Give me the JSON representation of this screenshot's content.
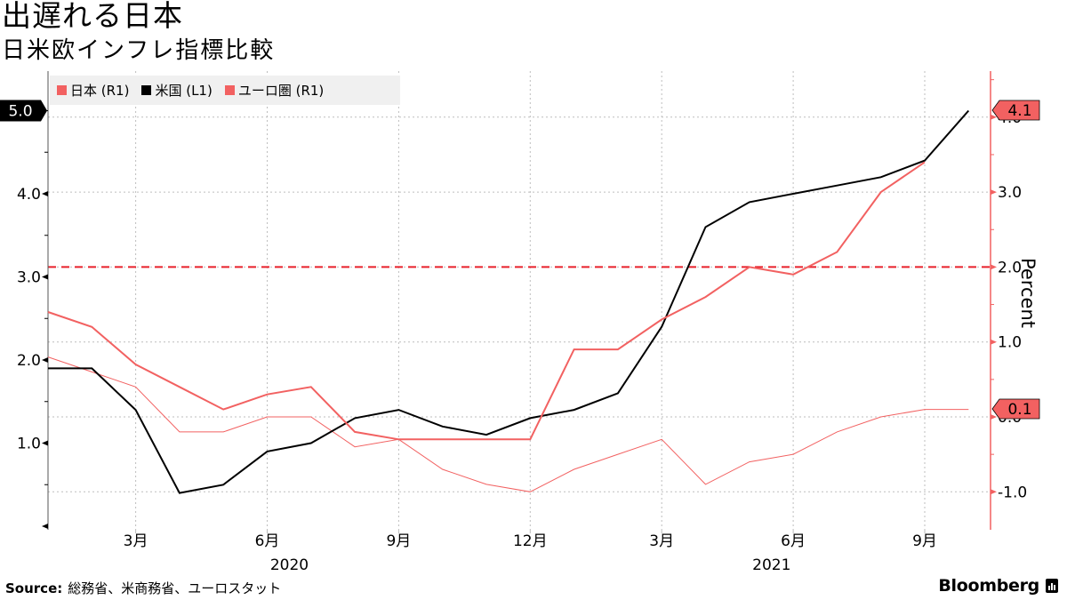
{
  "header": {
    "title": "出遅れる日本",
    "subtitle": "日米欧インフレ指標比較"
  },
  "legend": [
    {
      "label": "日本 (R1)",
      "color": "#f26161"
    },
    {
      "label": "米国 (L1)",
      "color": "#000000"
    },
    {
      "label": "ユーロ圏 (R1)",
      "color": "#f26161"
    }
  ],
  "footer": {
    "source_label": "Source:",
    "source_text": "総務省、米商務省、ユーロスタット",
    "brand": "Bloomberg"
  },
  "chart_data": {
    "type": "line",
    "title": "出遅れる日本",
    "subtitle": "日米欧インフレ指標比較",
    "xlabel": "",
    "ylabel_right": "Percent",
    "x": [
      "2020-01",
      "2020-02",
      "2020-03",
      "2020-04",
      "2020-05",
      "2020-06",
      "2020-07",
      "2020-08",
      "2020-09",
      "2020-10",
      "2020-11",
      "2020-12",
      "2021-01",
      "2021-02",
      "2021-03",
      "2021-04",
      "2021-05",
      "2021-06",
      "2021-07",
      "2021-08",
      "2021-09",
      "2021-10"
    ],
    "x_tick_labels": [
      "3月",
      "6月",
      "9月",
      "12月",
      "3月",
      "6月",
      "9月"
    ],
    "x_tick_months": [
      2,
      5,
      8,
      11,
      14,
      17,
      20
    ],
    "x_year_labels": [
      {
        "label": "2020",
        "month": 5
      },
      {
        "label": "2021",
        "month": 16
      }
    ],
    "left_axis": {
      "ticks": [
        "1.0",
        "2.0",
        "3.0",
        "4.0"
      ],
      "tick_values": [
        1,
        2,
        3,
        4
      ],
      "ylim": [
        0,
        5.0
      ],
      "last_value_label": "5.0"
    },
    "right_axis": {
      "ticks": [
        "-1.0",
        "0.0",
        "1.0",
        "2.0",
        "3.0",
        "4.0"
      ],
      "tick_values": [
        -1,
        0,
        1,
        2,
        3,
        4
      ],
      "ylim": [
        -1.5,
        5.5
      ],
      "labels_shown": [
        "-1.0",
        "1.0",
        "2.0",
        "3.0"
      ],
      "last_value_labels": [
        "4.1",
        "0.1"
      ]
    },
    "reference_line": {
      "axis": "right",
      "value": 2.0,
      "style": "dashed",
      "color": "#e8212b"
    },
    "grid": true,
    "legend_position": "top-left",
    "series": [
      {
        "name": "日本 (R1)",
        "axis": "right",
        "color": "#f26161",
        "width": 1,
        "values": [
          0.8,
          0.6,
          0.4,
          -0.2,
          -0.2,
          0.0,
          0.0,
          -0.4,
          -0.3,
          -0.7,
          -0.9,
          -1.0,
          -0.7,
          -0.5,
          -0.3,
          -0.9,
          -0.6,
          -0.5,
          -0.2,
          0.0,
          0.1,
          0.1
        ]
      },
      {
        "name": "米国 (L1)",
        "axis": "left",
        "color": "#000000",
        "width": 2,
        "values": [
          1.9,
          1.9,
          1.4,
          0.4,
          0.5,
          0.9,
          1.0,
          1.3,
          1.4,
          1.2,
          1.1,
          1.3,
          1.4,
          1.6,
          2.4,
          3.6,
          3.9,
          4.0,
          4.1,
          4.2,
          4.4,
          5.0
        ]
      },
      {
        "name": "ユーロ圏 (R1)",
        "axis": "right",
        "color": "#f26161",
        "width": 2,
        "values": [
          1.4,
          1.2,
          0.7,
          0.4,
          0.1,
          0.3,
          0.4,
          -0.2,
          -0.3,
          -0.3,
          -0.3,
          -0.3,
          0.9,
          0.9,
          1.3,
          1.6,
          2.0,
          1.9,
          2.2,
          3.0,
          3.4,
          null
        ]
      }
    ]
  }
}
